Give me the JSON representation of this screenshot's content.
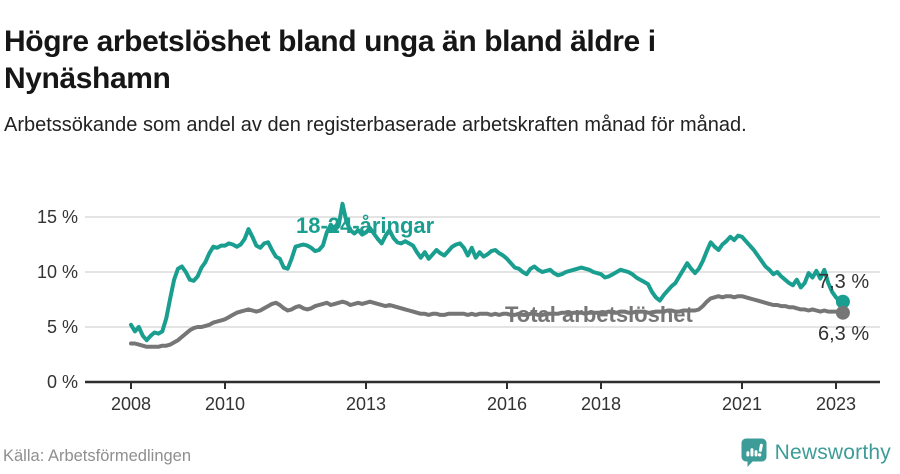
{
  "header": {
    "title": "Högre arbetslöshet bland unga än bland äldre i Nynäshamn",
    "subtitle": "Arbetssökande som andel av den registerbaserade arbetskraften månad för månad."
  },
  "footer": {
    "source": "Källa: Arbetsförmedlingen",
    "brand": "Newsworthy"
  },
  "colors": {
    "youth": "#1a9e8f",
    "total": "#767676",
    "axis": "#2e2e2e",
    "grid": "#dcdcdc",
    "tick_text": "#333333",
    "brand": "#3d9c98",
    "source_text": "#8f8f8f"
  },
  "chart_data": {
    "type": "line",
    "title": "Högre arbetslöshet bland unga än bland äldre i Nynäshamn",
    "xlabel": "",
    "ylabel": "",
    "unit": "%",
    "grid": true,
    "legend_position": "inline-labels",
    "x_start_year": 2008,
    "x_step_months": 1,
    "x_ticks": [
      2008,
      2010,
      2013,
      2016,
      2018,
      2021,
      2023
    ],
    "y_ticks": [
      0,
      5,
      10,
      15
    ],
    "y_tick_suffix": " %",
    "ylim": [
      0,
      16.5
    ],
    "series": [
      {
        "name": "18-24-åringar",
        "color_key": "youth",
        "end_label": "7,3 %",
        "end_value": 7.3,
        "values": [
          5.2,
          4.6,
          5.0,
          4.2,
          3.8,
          4.2,
          4.5,
          4.4,
          4.6,
          5.8,
          7.6,
          9.3,
          10.3,
          10.5,
          10.0,
          9.3,
          9.2,
          9.6,
          10.4,
          10.9,
          11.7,
          12.3,
          12.2,
          12.4,
          12.4,
          12.6,
          12.5,
          12.3,
          12.5,
          13.0,
          13.9,
          13.2,
          12.4,
          12.2,
          12.6,
          12.7,
          12.0,
          11.4,
          11.2,
          10.4,
          10.3,
          11.2,
          12.3,
          12.4,
          12.5,
          12.4,
          12.2,
          11.9,
          12.0,
          12.4,
          13.6,
          14.3,
          13.8,
          14.2,
          16.2,
          14.6,
          13.8,
          13.5,
          13.8,
          13.4,
          13.6,
          14.0,
          13.5,
          13.0,
          12.6,
          13.3,
          13.8,
          13.1,
          12.7,
          12.6,
          12.8,
          12.6,
          12.4,
          11.8,
          11.3,
          11.8,
          11.2,
          11.6,
          12.0,
          11.7,
          11.5,
          11.9,
          12.3,
          12.5,
          12.6,
          12.2,
          11.5,
          12.2,
          11.3,
          11.8,
          11.4,
          11.6,
          11.9,
          12.0,
          11.7,
          11.5,
          11.2,
          10.8,
          10.4,
          10.3,
          10.0,
          9.8,
          10.3,
          10.5,
          10.2,
          10.0,
          10.1,
          10.2,
          9.9,
          9.7,
          9.8,
          10.0,
          10.1,
          10.2,
          10.3,
          10.4,
          10.3,
          10.2,
          10.0,
          9.9,
          9.8,
          9.5,
          9.6,
          9.8,
          10.0,
          10.2,
          10.1,
          10.0,
          9.8,
          9.5,
          9.3,
          9.1,
          8.9,
          8.2,
          7.7,
          7.4,
          7.9,
          8.3,
          8.7,
          9.0,
          9.6,
          10.2,
          10.8,
          10.3,
          9.9,
          10.3,
          11.0,
          11.9,
          12.7,
          12.3,
          12.0,
          12.5,
          12.8,
          13.2,
          12.9,
          13.3,
          13.2,
          12.8,
          12.4,
          12.0,
          11.5,
          11.0,
          10.5,
          10.2,
          9.8,
          10.0,
          9.6,
          9.3,
          9.0,
          8.8,
          9.3,
          8.6,
          9.0,
          9.9,
          9.5,
          10.1,
          9.4,
          10.2,
          9.0,
          8.2,
          7.7,
          7.3
        ]
      },
      {
        "name": "Total arbetslöshet",
        "color_key": "total",
        "end_label": "6,3 %",
        "end_value": 6.3,
        "values": [
          3.5,
          3.5,
          3.4,
          3.3,
          3.2,
          3.2,
          3.2,
          3.2,
          3.3,
          3.3,
          3.4,
          3.6,
          3.8,
          4.1,
          4.4,
          4.7,
          4.9,
          5.0,
          5.0,
          5.1,
          5.2,
          5.4,
          5.5,
          5.6,
          5.7,
          5.9,
          6.1,
          6.3,
          6.4,
          6.5,
          6.6,
          6.5,
          6.4,
          6.5,
          6.7,
          6.9,
          7.1,
          7.2,
          7.0,
          6.7,
          6.5,
          6.6,
          6.8,
          6.9,
          6.7,
          6.6,
          6.7,
          6.9,
          7.0,
          7.1,
          7.2,
          7.0,
          7.1,
          7.2,
          7.3,
          7.2,
          7.0,
          7.1,
          7.2,
          7.1,
          7.2,
          7.3,
          7.2,
          7.1,
          7.0,
          6.9,
          7.0,
          6.9,
          6.8,
          6.7,
          6.6,
          6.5,
          6.4,
          6.3,
          6.2,
          6.2,
          6.1,
          6.2,
          6.2,
          6.1,
          6.1,
          6.2,
          6.2,
          6.2,
          6.2,
          6.2,
          6.1,
          6.2,
          6.1,
          6.2,
          6.2,
          6.2,
          6.1,
          6.2,
          6.1,
          6.2,
          6.2,
          6.1,
          6.1,
          6.2,
          6.1,
          6.1,
          6.2,
          6.2,
          6.1,
          6.1,
          6.2,
          6.2,
          6.2,
          6.2,
          6.3,
          6.3,
          6.2,
          6.3,
          6.3,
          6.3,
          6.2,
          6.3,
          6.3,
          6.3,
          6.3,
          6.3,
          6.4,
          6.3,
          6.3,
          6.4,
          6.4,
          6.3,
          6.3,
          6.4,
          6.4,
          6.4,
          6.3,
          6.3,
          6.4,
          6.4,
          6.4,
          6.5,
          6.5,
          6.4,
          6.4,
          6.5,
          6.5,
          6.5,
          6.5,
          6.6,
          6.9,
          7.3,
          7.6,
          7.7,
          7.8,
          7.7,
          7.8,
          7.8,
          7.7,
          7.8,
          7.8,
          7.7,
          7.6,
          7.5,
          7.4,
          7.3,
          7.2,
          7.1,
          7.0,
          7.0,
          6.9,
          6.9,
          6.8,
          6.8,
          6.7,
          6.6,
          6.6,
          6.5,
          6.6,
          6.5,
          6.4,
          6.5,
          6.4,
          6.4,
          6.4,
          6.3
        ]
      }
    ]
  }
}
